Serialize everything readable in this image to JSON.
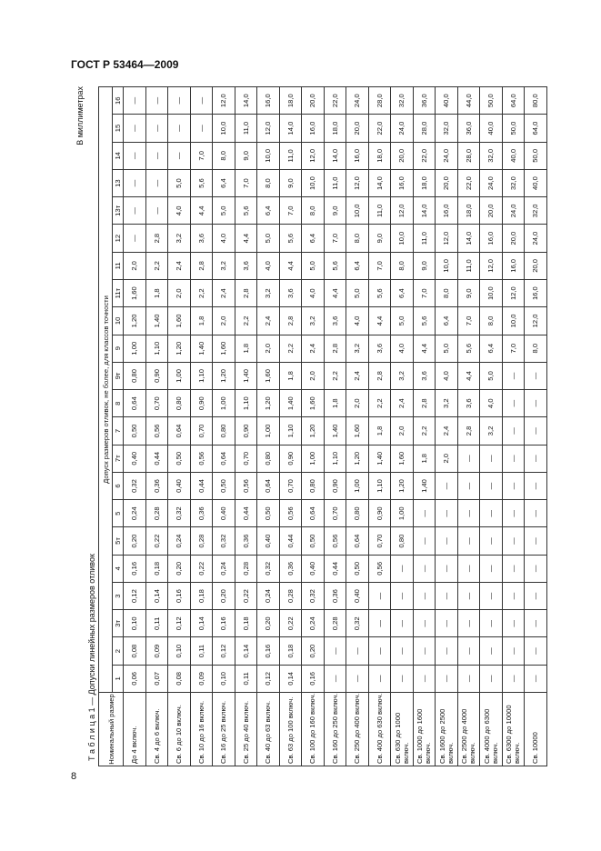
{
  "header": {
    "title": "ГОСТ Р 53464—2009"
  },
  "page_number": "8",
  "table": {
    "unit": "В миллиметрах",
    "caption": "Т а б л и ц а  1 — Допуски линейных размеров отливок",
    "header": {
      "size": "Номинальный размер",
      "group": "Допуск размеров отливок, не более, для классов точности",
      "classes": [
        "1",
        "2",
        "3т",
        "3",
        "4",
        "5т",
        "5",
        "6",
        "7т",
        "7",
        "8",
        "9т",
        "9",
        "10",
        "11т",
        "11",
        "12",
        "13т",
        "13",
        "14",
        "15",
        "16"
      ]
    },
    "rows": [
      {
        "size": "До 4 включ.",
        "values": [
          "0,06",
          "0,08",
          "0,10",
          "0,12",
          "0,16",
          "0,20",
          "0,24",
          "0,32",
          "0,40",
          "0,50",
          "0,64",
          "0,80",
          "1,00",
          "1,20",
          "1,60",
          "2,0",
          "—",
          "—",
          "—",
          "—",
          "—",
          "—"
        ]
      },
      {
        "size": "Св. 4 до 6 включ.",
        "values": [
          "0,07",
          "0,09",
          "0,11",
          "0,14",
          "0,18",
          "0,22",
          "0,28",
          "0,36",
          "0,44",
          "0,56",
          "0,70",
          "0,90",
          "1,10",
          "1,40",
          "1,8",
          "2,2",
          "2,8",
          "—",
          "—",
          "—",
          "—",
          "—"
        ]
      },
      {
        "size": "Св. 6 до 10 включ.",
        "values": [
          "0,08",
          "0,10",
          "0,12",
          "0,16",
          "0,20",
          "0,24",
          "0,32",
          "0,40",
          "0,50",
          "0,64",
          "0,80",
          "1,00",
          "1,20",
          "1,60",
          "2,0",
          "2,4",
          "3,2",
          "4,0",
          "5,0",
          "—",
          "—",
          "—"
        ]
      },
      {
        "size": "Св. 10 до 16 включ.",
        "values": [
          "0,09",
          "0,11",
          "0,14",
          "0,18",
          "0,22",
          "0,28",
          "0,36",
          "0,44",
          "0,56",
          "0,70",
          "0,90",
          "1,10",
          "1,40",
          "1,8",
          "2,2",
          "2,8",
          "3,6",
          "4,4",
          "5,6",
          "7,0",
          "—",
          "—"
        ]
      },
      {
        "size": "Св. 16 до 25 включ.",
        "values": [
          "0,10",
          "0,12",
          "0,16",
          "0,20",
          "0,24",
          "0,32",
          "0,40",
          "0,50",
          "0,64",
          "0,80",
          "1,00",
          "1,20",
          "1,60",
          "2,0",
          "2,4",
          "3,2",
          "4,0",
          "5,0",
          "6,4",
          "8,0",
          "10,0",
          "12,0"
        ]
      },
      {
        "size": "Св. 25 до 40 включ.",
        "values": [
          "0,11",
          "0,14",
          "0,18",
          "0,22",
          "0,28",
          "0,36",
          "0,44",
          "0,56",
          "0,70",
          "0,90",
          "1,10",
          "1,40",
          "1,8",
          "2,2",
          "2,8",
          "3,6",
          "4,4",
          "5,6",
          "7,0",
          "9,0",
          "11,0",
          "14,0"
        ]
      },
      {
        "size": "Св. 40 до 63 включ.",
        "values": [
          "0,12",
          "0,16",
          "0,20",
          "0,24",
          "0,32",
          "0,40",
          "0,50",
          "0,64",
          "0,80",
          "1,00",
          "1,20",
          "1,60",
          "2,0",
          "2,4",
          "3,2",
          "4,0",
          "5,0",
          "6,4",
          "8,0",
          "10,0",
          "12,0",
          "16,0"
        ]
      },
      {
        "size": "Св. 63 до 100 включ.",
        "values": [
          "0,14",
          "0,18",
          "0,22",
          "0,28",
          "0,36",
          "0,44",
          "0,56",
          "0,70",
          "0,90",
          "1,10",
          "1,40",
          "1,8",
          "2,2",
          "2,8",
          "3,6",
          "4,4",
          "5,6",
          "7,0",
          "9,0",
          "11,0",
          "14,0",
          "18,0"
        ]
      },
      {
        "size": "Св. 100 до 160 включ.",
        "values": [
          "0,16",
          "0,20",
          "0,24",
          "0,32",
          "0,40",
          "0,50",
          "0,64",
          "0,80",
          "1,00",
          "1,20",
          "1,60",
          "2,0",
          "2,4",
          "3,2",
          "4,0",
          "5,0",
          "6,4",
          "8,0",
          "10,0",
          "12,0",
          "16,0",
          "20,0"
        ]
      },
      {
        "size": "Св. 160 до 250 включ.",
        "values": [
          "—",
          "—",
          "0,28",
          "0,36",
          "0,44",
          "0,56",
          "0,70",
          "0,90",
          "1,10",
          "1,40",
          "1,8",
          "2,2",
          "2,8",
          "3,6",
          "4,4",
          "5,6",
          "7,0",
          "9,0",
          "11,0",
          "14,0",
          "18,0",
          "22,0"
        ]
      },
      {
        "size": "Св. 250 до 400 включ.",
        "values": [
          "—",
          "—",
          "0,32",
          "0,40",
          "0,50",
          "0,64",
          "0,80",
          "1,00",
          "1,20",
          "1,60",
          "2,0",
          "2,4",
          "3,2",
          "4,0",
          "5,0",
          "6,4",
          "8,0",
          "10,0",
          "12,0",
          "16,0",
          "20,0",
          "24,0"
        ]
      },
      {
        "size": "Св. 400 до 630 включ.",
        "values": [
          "—",
          "—",
          "—",
          "—",
          "0,56",
          "0,70",
          "0,90",
          "1,10",
          "1,40",
          "1,8",
          "2,2",
          "2,8",
          "3,6",
          "4,4",
          "5,6",
          "7,0",
          "9,0",
          "11,0",
          "14,0",
          "18,0",
          "22,0",
          "28,0"
        ]
      },
      {
        "size": "Св. 630 до 1000 включ.",
        "values": [
          "—",
          "—",
          "—",
          "—",
          "—",
          "0,80",
          "1,00",
          "1,20",
          "1,60",
          "2,0",
          "2,4",
          "3,2",
          "4,0",
          "5,0",
          "6,4",
          "8,0",
          "10,0",
          "12,0",
          "16,0",
          "20,0",
          "24,0",
          "32,0"
        ]
      },
      {
        "size": "Св. 1000 до 1600 включ.",
        "values": [
          "—",
          "—",
          "—",
          "—",
          "—",
          "—",
          "—",
          "1,40",
          "1,8",
          "2,2",
          "2,8",
          "3,6",
          "4,4",
          "5,6",
          "7,0",
          "9,0",
          "11,0",
          "14,0",
          "18,0",
          "22,0",
          "28,0",
          "36,0"
        ]
      },
      {
        "size": "Св. 1600 до 2500 включ.",
        "values": [
          "—",
          "—",
          "—",
          "—",
          "—",
          "—",
          "—",
          "—",
          "2,0",
          "2,4",
          "3,2",
          "4,0",
          "5,0",
          "6,4",
          "8,0",
          "10,0",
          "12,0",
          "16,0",
          "20,0",
          "24,0",
          "32,0",
          "40,0"
        ]
      },
      {
        "size": "Св. 2500 до 4000 включ.",
        "values": [
          "—",
          "—",
          "—",
          "—",
          "—",
          "—",
          "—",
          "—",
          "—",
          "2,8",
          "3,6",
          "4,4",
          "5,6",
          "7,0",
          "9,0",
          "11,0",
          "14,0",
          "18,0",
          "22,0",
          "28,0",
          "36,0",
          "44,0"
        ]
      },
      {
        "size": "Св. 4000 до 6300 включ.",
        "values": [
          "—",
          "—",
          "—",
          "—",
          "—",
          "—",
          "—",
          "—",
          "—",
          "3,2",
          "4,0",
          "5,0",
          "6,4",
          "8,0",
          "10,0",
          "12,0",
          "16,0",
          "20,0",
          "24,0",
          "32,0",
          "40,0",
          "50,0"
        ]
      },
      {
        "size": "Св. 6300 до 10000 включ.",
        "values": [
          "—",
          "—",
          "—",
          "—",
          "—",
          "—",
          "—",
          "—",
          "—",
          "—",
          "—",
          "—",
          "7,0",
          "10,0",
          "12,0",
          "16,0",
          "20,0",
          "24,0",
          "32,0",
          "40,0",
          "50,0",
          "64,0"
        ]
      },
      {
        "size": "Св. 10000",
        "values": [
          "—",
          "—",
          "—",
          "—",
          "—",
          "—",
          "—",
          "—",
          "—",
          "—",
          "—",
          "—",
          "8,0",
          "12,0",
          "16,0",
          "20,0",
          "24,0",
          "32,0",
          "40,0",
          "50,0",
          "64,0",
          "80,0"
        ]
      }
    ]
  }
}
